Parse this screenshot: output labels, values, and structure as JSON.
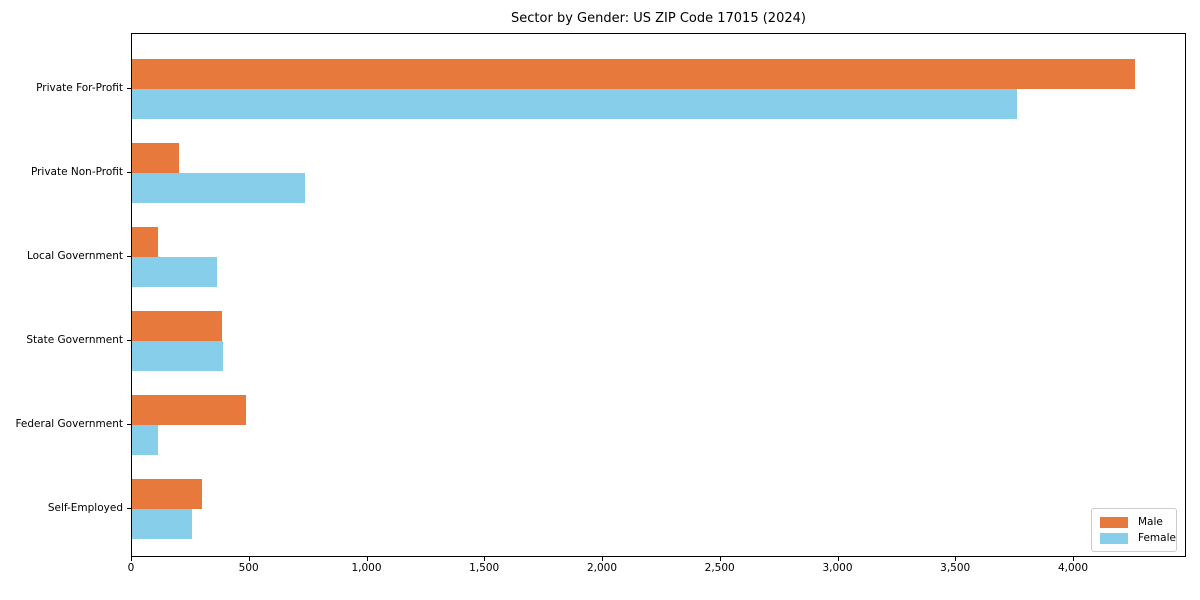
{
  "chart_data": {
    "type": "bar",
    "orientation": "horizontal",
    "title": "Sector by Gender: US ZIP Code 17015 (2024)",
    "categories": [
      "Private For-Profit",
      "Private Non-Profit",
      "Local Government",
      "State Government",
      "Federal Government",
      "Self-Employed"
    ],
    "series": [
      {
        "name": "Male",
        "color": "#e8793d",
        "values": [
          4260,
          200,
          110,
          380,
          485,
          295
        ]
      },
      {
        "name": "Female",
        "color": "#87ceeb",
        "values": [
          3760,
          735,
          360,
          385,
          110,
          255
        ]
      }
    ],
    "xticks": [
      0,
      500,
      1000,
      1500,
      2000,
      2500,
      3000,
      3500,
      4000
    ],
    "xtick_labels": [
      "0",
      "500",
      "1,000",
      "1,500",
      "2,000",
      "2,500",
      "3,000",
      "3,500",
      "4,000"
    ],
    "xlim": [
      0,
      4480
    ],
    "xlabel": "",
    "ylabel": "",
    "grid": false,
    "background": "#ffffff",
    "spine_color": "#000000",
    "legend": {
      "position": "lower right",
      "entries": [
        "Male",
        "Female"
      ]
    }
  }
}
